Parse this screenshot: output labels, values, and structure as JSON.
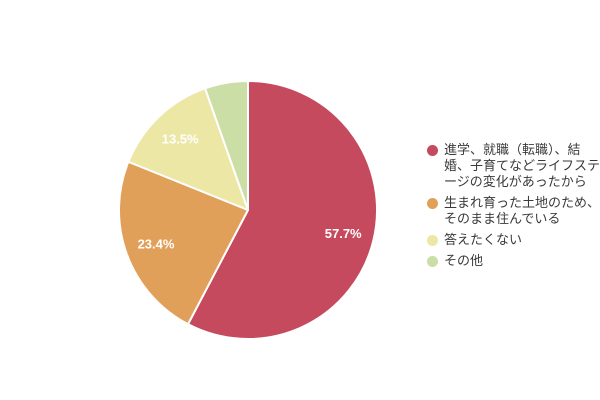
{
  "background_color": "#ffffff",
  "chart_data": {
    "type": "pie",
    "title": "",
    "direction": "clockwise",
    "start_angle_deg": 0,
    "legend_position": "right",
    "slice_border_color": "#ffffff",
    "value_label_color": "#ffffff",
    "slices": [
      {
        "name": "life-stage-change",
        "label": "進学、就職（転職）、結婚、子育てなどライフステージの変化があったから",
        "lines": [
          "進学、就職（転職）、結",
          "婚、子育てなどライフステ",
          "ージの変化があったから"
        ],
        "value": 57.7,
        "display_value": "57.7%",
        "color": "#C54A5E"
      },
      {
        "name": "born-and-raised-here",
        "label": "生まれ育った土地のため、そのまま住んでいる",
        "lines": [
          "生まれ育った土地のため、",
          "そのまま住んでいる"
        ],
        "value": 23.4,
        "display_value": "23.4%",
        "color": "#E1A05A"
      },
      {
        "name": "prefer-not-to-answer",
        "label": "答えたくない",
        "lines": [
          "答えたくない"
        ],
        "value": 13.5,
        "display_value": "13.5%",
        "color": "#EDE7A6"
      },
      {
        "name": "other",
        "label": "その他",
        "lines": [
          "その他"
        ],
        "value": 5.4,
        "display_value": "",
        "color": "#CBDEA6"
      }
    ]
  }
}
